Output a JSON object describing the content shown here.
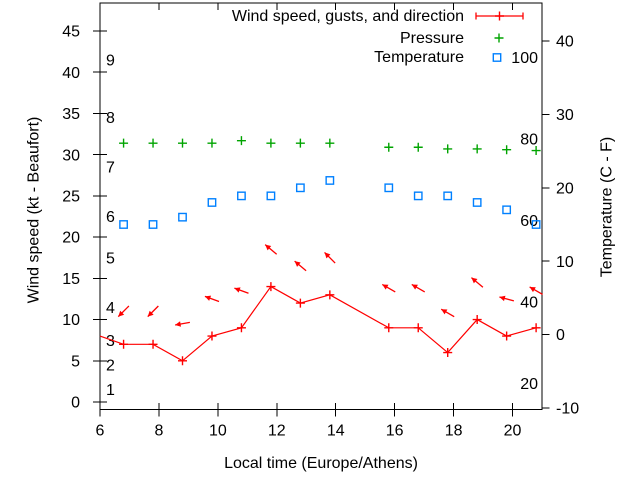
{
  "figure": {
    "background": "#ffffff",
    "xlabel": "Local time (Europe/Athens)",
    "ylabel_left": "Wind speed (kt - Beaufort)",
    "ylabel_right": "Temperature (C - F)"
  },
  "colors": {
    "axis": "#000000",
    "text": "#000000",
    "wind": "#ff0000",
    "pressure": "#00a400",
    "temperature": "#0080ff"
  },
  "legend": {
    "items": [
      {
        "label": "Wind speed, gusts, and direction",
        "series": "wind",
        "marker": "line-with-plus",
        "color": "#ff0000"
      },
      {
        "label": "Pressure",
        "series": "pressure",
        "marker": "plus",
        "color": "#00a400"
      },
      {
        "label": "Temperature",
        "series": "temperature",
        "marker": "open-square",
        "color": "#0080ff"
      }
    ]
  },
  "chart_data": {
    "type": "line",
    "title": "",
    "grid": false,
    "legend_position": "top-right-inside",
    "x_axis": {
      "label": "Local time (Europe/Athens)",
      "range": [
        6,
        21
      ],
      "ticks": [
        6,
        8,
        10,
        12,
        14,
        16,
        18,
        20
      ]
    },
    "y_axis_left": {
      "label": "Wind speed (kt - Beaufort)",
      "units": "kt",
      "range": [
        0,
        45
      ],
      "ticks": [
        0,
        5,
        10,
        15,
        20,
        25,
        30,
        35,
        40,
        45
      ],
      "beaufort_scale": [
        {
          "bft": 1,
          "kt": 1
        },
        {
          "bft": 2,
          "kt": 4
        },
        {
          "bft": 3,
          "kt": 7
        },
        {
          "bft": 4,
          "kt": 11
        },
        {
          "bft": 5,
          "kt": 17
        },
        {
          "bft": 6,
          "kt": 22
        },
        {
          "bft": 7,
          "kt": 28
        },
        {
          "bft": 8,
          "kt": 34
        },
        {
          "bft": 9,
          "kt": 41
        }
      ]
    },
    "y_axis_right": {
      "label": "Temperature (C - F)",
      "units": "C",
      "range_c": [
        -10,
        40
      ],
      "ticks_c": [
        -10,
        0,
        10,
        20,
        30,
        40
      ],
      "fahrenheit_labels": [
        20,
        40,
        60,
        80,
        100
      ]
    },
    "series": {
      "wind_speed": {
        "name": "Wind speed, gusts, and direction",
        "units": "kt",
        "line_start": {
          "x": 6,
          "y": 8
        },
        "x": [
          6.8,
          7.8,
          8.8,
          9.8,
          10.8,
          11.8,
          12.8,
          13.8,
          15.8,
          16.8,
          17.8,
          18.8,
          19.8,
          20.8
        ],
        "y": [
          7,
          7,
          5,
          8,
          9,
          14,
          12,
          13,
          9,
          9,
          6,
          10,
          8,
          9
        ]
      },
      "wind_gusts": {
        "units": "kt",
        "note": "arrow height = gust speed, arrow angle = wind direction (math degrees, 0=right, 90=up)",
        "x": [
          6.8,
          7.8,
          8.8,
          9.8,
          10.8,
          11.8,
          12.8,
          13.8,
          15.8,
          16.8,
          17.8,
          18.8,
          19.8,
          20.8
        ],
        "gust": [
          11,
          11,
          9.5,
          12.5,
          13.5,
          18.5,
          16.5,
          17.5,
          13.8,
          13.8,
          10.8,
          14.5,
          12.5,
          13.5
        ],
        "dir_deg_math": [
          225,
          225,
          190,
          160,
          160,
          140,
          140,
          135,
          150,
          150,
          150,
          140,
          165,
          150
        ]
      },
      "pressure": {
        "name": "Pressure",
        "units": "left-axis kt-equivalent (no pressure scale shown on plot)",
        "x": [
          6.8,
          7.8,
          8.8,
          9.8,
          10.8,
          11.8,
          12.8,
          13.8,
          15.8,
          16.8,
          17.8,
          18.8,
          19.8,
          20.8
        ],
        "y": [
          31.4,
          31.4,
          31.4,
          31.4,
          31.7,
          31.4,
          31.4,
          31.4,
          30.9,
          30.9,
          30.7,
          30.7,
          30.6,
          30.5
        ]
      },
      "temperature": {
        "name": "Temperature",
        "units": "C",
        "x": [
          6.8,
          7.8,
          8.8,
          9.8,
          10.8,
          11.8,
          12.8,
          13.8,
          15.8,
          16.8,
          17.8,
          18.8,
          19.8,
          20.8
        ],
        "y": [
          15,
          15,
          16,
          18,
          18.9,
          18.9,
          20,
          21,
          20,
          18.9,
          18.9,
          18,
          17,
          15
        ]
      }
    }
  }
}
